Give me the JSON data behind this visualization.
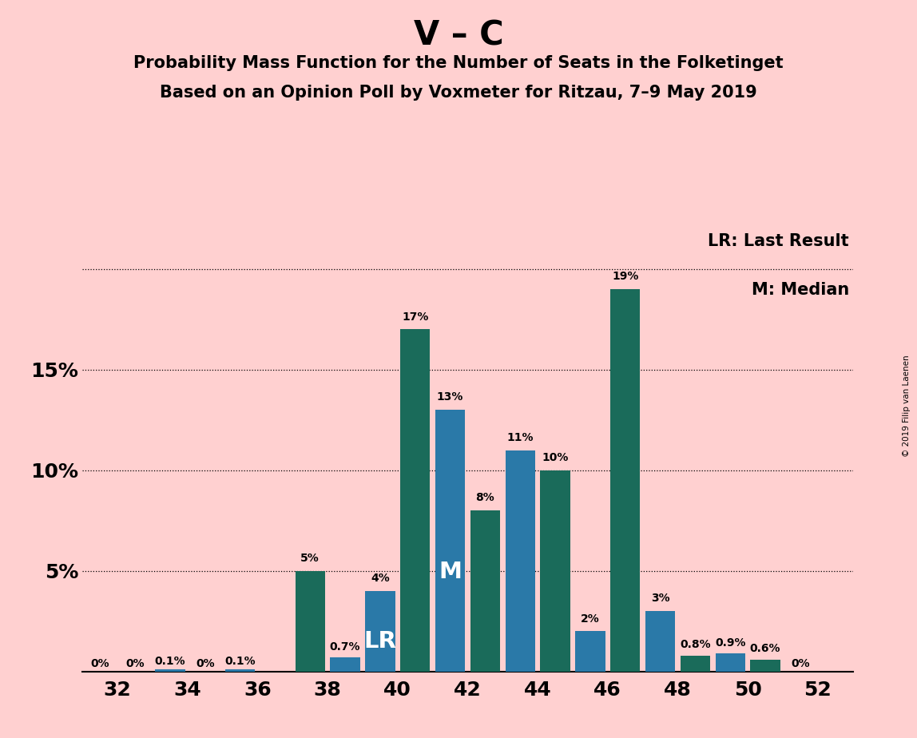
{
  "title_main": "V – C",
  "title_sub1": "Probability Mass Function for the Number of Seats in the Folketinget",
  "title_sub2": "Based on an Opinion Poll by Voxmeter for Ritzau, 7–9 May 2019",
  "background_color": "#FFD0D0",
  "color_teal": "#1A6B5A",
  "color_blue": "#2A79A8",
  "seats": [
    32,
    33,
    34,
    35,
    36,
    37,
    38,
    39,
    40,
    41,
    42,
    43,
    44,
    45,
    46,
    47,
    48,
    49,
    50,
    51,
    52
  ],
  "values": [
    0.0,
    0.0,
    0.1,
    0.0,
    0.1,
    0.0,
    5.0,
    0.7,
    4.0,
    17.0,
    13.0,
    8.0,
    11.0,
    10.0,
    2.0,
    19.0,
    3.0,
    0.8,
    0.9,
    0.6,
    0.0
  ],
  "colors": [
    "#2A79A8",
    "#2A79A8",
    "#2A79A8",
    "#1A6B5A",
    "#2A79A8",
    "#1A6B5A",
    "#1A6B5A",
    "#2A79A8",
    "#2A79A8",
    "#1A6B5A",
    "#2A79A8",
    "#1A6B5A",
    "#2A79A8",
    "#1A6B5A",
    "#2A79A8",
    "#1A6B5A",
    "#2A79A8",
    "#1A6B5A",
    "#2A79A8",
    "#1A6B5A",
    "#2A79A8"
  ],
  "labels": [
    "0%",
    "0%",
    "0.1%",
    "0%",
    "0.1%",
    "",
    "5%",
    "0.7%",
    "4%",
    "17%",
    "13%",
    "8%",
    "11%",
    "10%",
    "2%",
    "19%",
    "3%",
    "0.8%",
    "0.9%",
    "0.6%",
    "0%"
  ],
  "lr_bar_idx": 8,
  "m_bar_idx": 10,
  "xtick_positions": [
    32.5,
    34.5,
    36.5,
    38.5,
    40.5,
    42.5,
    44.5,
    46.5,
    48.5,
    50.5,
    52.5
  ],
  "xtick_labels": [
    "32",
    "34",
    "36",
    "38",
    "40",
    "42",
    "44",
    "46",
    "48",
    "50",
    "52"
  ],
  "ytick_positions": [
    0,
    5,
    10,
    15,
    20
  ],
  "ytick_labels": [
    "",
    "5%",
    "10%",
    "15%",
    ""
  ],
  "ylim": [
    0,
    22
  ],
  "xlim": [
    31.5,
    53.5
  ],
  "legend_lr": "LR: Last Result",
  "legend_m": "M: Median",
  "copyright": "© 2019 Filip van Laenen"
}
